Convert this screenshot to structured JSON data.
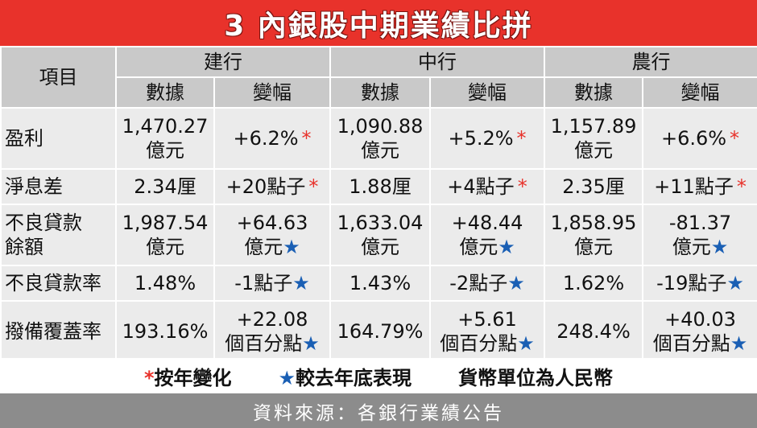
{
  "title": "3 內銀股中期業績比拼",
  "header": {
    "item": "項目",
    "banks": [
      "建行",
      "中行",
      "農行"
    ],
    "data_col": "數據",
    "change_col": "變幅"
  },
  "rows": [
    {
      "label": [
        "盈利"
      ],
      "cells": [
        {
          "data": [
            "1,470.27",
            "億元"
          ],
          "change": [
            "+6.2%"
          ],
          "mark": "*"
        },
        {
          "data": [
            "1,090.88",
            "億元"
          ],
          "change": [
            "+5.2%"
          ],
          "mark": "*"
        },
        {
          "data": [
            "1,157.89",
            "億元"
          ],
          "change": [
            "+6.6%"
          ],
          "mark": "*"
        }
      ]
    },
    {
      "label": [
        "淨息差"
      ],
      "cells": [
        {
          "data": [
            "2.34厘"
          ],
          "change": [
            "+20點子"
          ],
          "mark": "*"
        },
        {
          "data": [
            "1.88厘"
          ],
          "change": [
            "+4點子"
          ],
          "mark": "*"
        },
        {
          "data": [
            "2.35厘"
          ],
          "change": [
            "+11點子"
          ],
          "mark": "*"
        }
      ]
    },
    {
      "label": [
        "不良貸款",
        "餘額"
      ],
      "cells": [
        {
          "data": [
            "1,987.54",
            "億元"
          ],
          "change": [
            "+64.63",
            "億元"
          ],
          "mark": "★"
        },
        {
          "data": [
            "1,633.04",
            "億元"
          ],
          "change": [
            "+48.44",
            "億元"
          ],
          "mark": "★"
        },
        {
          "data": [
            "1,858.95",
            "億元"
          ],
          "change": [
            "-81.37",
            "億元"
          ],
          "mark": "★"
        }
      ]
    },
    {
      "label": [
        "不良貸款率"
      ],
      "cells": [
        {
          "data": [
            "1.48%"
          ],
          "change": [
            "-1點子"
          ],
          "mark": "★"
        },
        {
          "data": [
            "1.43%"
          ],
          "change": [
            "-2點子"
          ],
          "mark": "★"
        },
        {
          "data": [
            "1.62%"
          ],
          "change": [
            "-19點子"
          ],
          "mark": "★"
        }
      ]
    },
    {
      "label": [
        "撥備覆蓋率"
      ],
      "cells": [
        {
          "data": [
            "193.16%"
          ],
          "change": [
            "+22.08",
            "個百分點"
          ],
          "mark": "★"
        },
        {
          "data": [
            "164.79%"
          ],
          "change": [
            "+5.61",
            "個百分點"
          ],
          "mark": "★"
        },
        {
          "data": [
            "248.4%"
          ],
          "change": [
            "+40.03",
            "個百分點"
          ],
          "mark": "★"
        }
      ]
    }
  ],
  "legend": {
    "red_symbol": "*",
    "red_text": "按年變化",
    "blue_symbol": "★",
    "blue_text": "較去年底表現",
    "currency_note": "貨幣單位為人民幣"
  },
  "source": "資料來源：各銀行業績公告",
  "colors": {
    "title_bg": "#e8322b",
    "red_mark": "#e8322b",
    "blue_mark": "#1a5fb4",
    "header_bg": "#c9c9c9",
    "cell_bg": "#ebebeb",
    "source_bg": "#8c8c8c"
  }
}
